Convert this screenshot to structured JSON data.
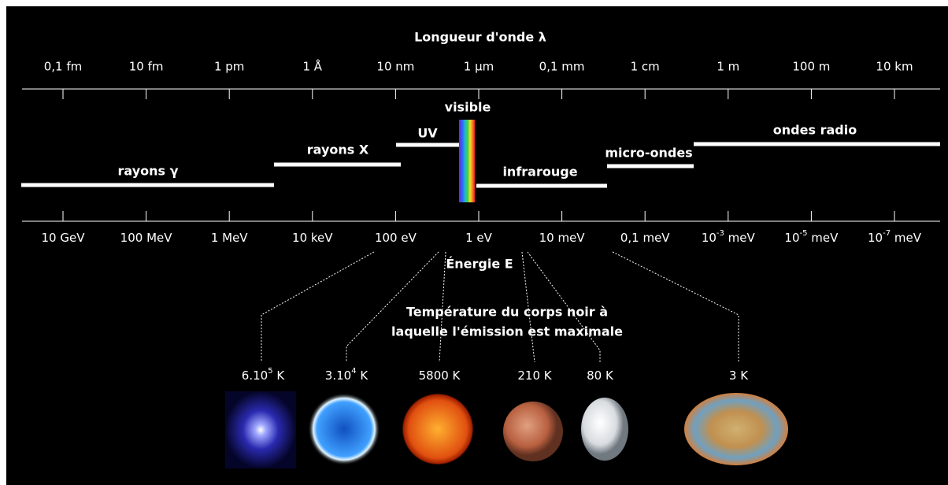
{
  "wavelength_axis": {
    "title": "Longueur d'onde λ",
    "labels": [
      "0,1 fm",
      "10 fm",
      "1 pm",
      "1 Å",
      "10 nm",
      "1 µm",
      "0,1 mm",
      "1 cm",
      "1 m",
      "100 m",
      "10 km"
    ]
  },
  "bands": [
    {
      "label": "rayons γ"
    },
    {
      "label": "rayons X"
    },
    {
      "label": "UV"
    },
    {
      "label": "visible"
    },
    {
      "label": "infrarouge"
    },
    {
      "label": "micro-ondes"
    },
    {
      "label": "ondes radio"
    }
  ],
  "energy_axis": {
    "title": "Énergie E",
    "labels": [
      {
        "base": "10 GeV"
      },
      {
        "base": "100 MeV"
      },
      {
        "base": "1 MeV"
      },
      {
        "base": "10 keV"
      },
      {
        "base": "100 eV"
      },
      {
        "base": "1 eV"
      },
      {
        "base": "10 meV"
      },
      {
        "base": "0,1 meV"
      },
      {
        "base": "10",
        "sup": "-3",
        "unit": " meV"
      },
      {
        "base": "10",
        "sup": "-5",
        "unit": " meV"
      },
      {
        "base": "10",
        "sup": "-7",
        "unit": " meV"
      }
    ]
  },
  "temperature": {
    "title_lines": [
      "Température du corps noir à",
      "laquelle l'émission est maximale"
    ],
    "labels": [
      {
        "base": "6.10",
        "sup": "5",
        "unit": " K"
      },
      {
        "base": "3.10",
        "sup": "4",
        "unit": " K"
      },
      {
        "base": "5800 K"
      },
      {
        "base": "210 K"
      },
      {
        "base": "80 K"
      },
      {
        "base": "3 K"
      }
    ]
  }
}
